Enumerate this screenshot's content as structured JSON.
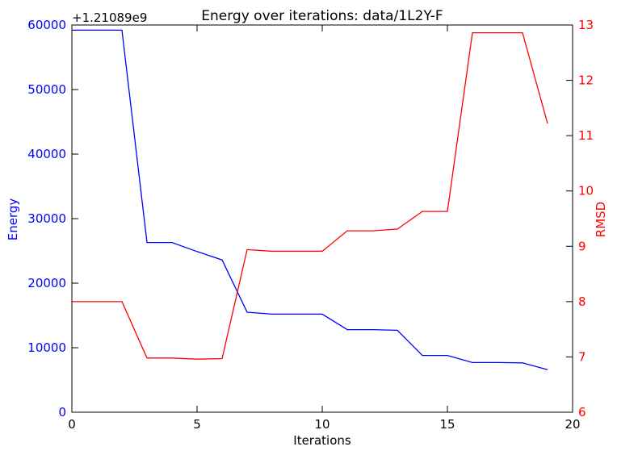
{
  "chart_data": {
    "type": "line",
    "title": "Energy over iterations: data/1L2Y-F",
    "xlabel": "Iterations",
    "ylabel_left": "Energy",
    "ylabel_right": "RMSD",
    "offset_text": "+1.21089e9",
    "xlim": [
      0,
      20
    ],
    "ylim_left": [
      0,
      60000
    ],
    "ylim_right": [
      6,
      13
    ],
    "x_ticks": [
      "0",
      "5",
      "10",
      "15",
      "20"
    ],
    "y_left_ticks": [
      "0",
      "10000",
      "20000",
      "30000",
      "40000",
      "50000",
      "60000"
    ],
    "y_right_ticks": [
      "6",
      "7",
      "8",
      "9",
      "10",
      "11",
      "12",
      "13"
    ],
    "grid": false,
    "colors": {
      "energy": "#0000ff",
      "rmsd": "#ff0000",
      "axes": "#000000"
    },
    "x": [
      0,
      1,
      2,
      3,
      4,
      5,
      6,
      7,
      8,
      9,
      10,
      11,
      12,
      13,
      14,
      15,
      16,
      17,
      18,
      19
    ],
    "series": [
      {
        "axis": "left",
        "color": "#0000ff",
        "values": [
          59200,
          59200,
          59200,
          26300,
          26300,
          24900,
          23600,
          15500,
          15200,
          15200,
          15200,
          12800,
          12800,
          12700,
          8800,
          8800,
          7700,
          7700,
          7650,
          6600
        ]
      },
      {
        "axis": "right",
        "color": "#ff0000",
        "values": [
          8.0,
          8.0,
          8.0,
          6.98,
          6.98,
          6.96,
          6.97,
          8.94,
          8.91,
          8.91,
          8.91,
          9.28,
          9.28,
          9.31,
          9.63,
          9.63,
          12.86,
          12.86,
          12.86,
          11.22
        ]
      }
    ]
  }
}
